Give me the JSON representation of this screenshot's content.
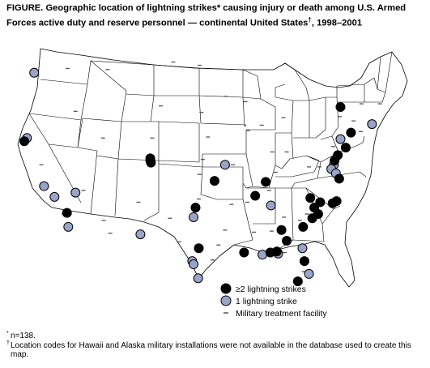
{
  "figure": {
    "title_line1": "FIGURE. Geographic location of lightning strikes* causing injury or death among U.S. Armed",
    "title_line2": "Forces active duty and reserve personnel — continental United States",
    "title_dagger": "†",
    "title_tail": ", 1998–2001"
  },
  "legend": {
    "multi_label": "≥2 lightning strikes",
    "single_label": "1 lightning strike",
    "facility_label": "Military treatment facility"
  },
  "footnotes": {
    "n_mark": "*",
    "n_text": "n=138.",
    "dagger_mark": "†",
    "dagger_text": "Location codes for Hawaii and Alaska military installations were not available in the database used to create this map."
  },
  "colors": {
    "multi_strike": "#000000",
    "single_strike": "#9aa4c8",
    "marker_outline": "#000000",
    "facility_mark": "#555555",
    "state_border": "#000000"
  },
  "map_marks": {
    "multi_strike_sites": [
      {
        "lon": -124.0,
        "lat": 40.8
      },
      {
        "lon": -104.8,
        "lat": 39.2
      },
      {
        "lon": -104.7,
        "lat": 38.8
      },
      {
        "lon": -117.5,
        "lat": 34.1
      },
      {
        "lon": -95.0,
        "lat": 37.1
      },
      {
        "lon": -97.9,
        "lat": 34.6
      },
      {
        "lon": -97.4,
        "lat": 30.8
      },
      {
        "lon": -90.5,
        "lat": 30.4
      },
      {
        "lon": -87.2,
        "lat": 37.0
      },
      {
        "lon": -88.8,
        "lat": 35.7
      },
      {
        "lon": -86.5,
        "lat": 30.4
      },
      {
        "lon": -85.5,
        "lat": 30.5
      },
      {
        "lon": -84.0,
        "lat": 31.5
      },
      {
        "lon": -84.8,
        "lat": 32.5
      },
      {
        "lon": -81.5,
        "lat": 32.8
      },
      {
        "lon": -80.1,
        "lat": 33.6
      },
      {
        "lon": -79.2,
        "lat": 34.0
      },
      {
        "lon": -78.9,
        "lat": 35.1
      },
      {
        "lon": -77.0,
        "lat": 35.0
      },
      {
        "lon": -76.4,
        "lat": 35.2
      },
      {
        "lon": -80.4,
        "lat": 35.5
      },
      {
        "lon": -79.8,
        "lat": 34.6
      },
      {
        "lon": -76.0,
        "lat": 37.3
      },
      {
        "lon": -76.7,
        "lat": 39.0
      },
      {
        "lon": -76.2,
        "lat": 39.5
      },
      {
        "lon": -75.0,
        "lat": 40.2
      },
      {
        "lon": -74.2,
        "lat": 41.6
      },
      {
        "lon": -75.8,
        "lat": 44.0
      },
      {
        "lon": -81.3,
        "lat": 29.6
      },
      {
        "lon": -82.3,
        "lat": 27.7
      }
    ],
    "single_strike_sites": [
      {
        "lon": -122.5,
        "lat": 47.2
      },
      {
        "lon": -123.6,
        "lat": 41.1
      },
      {
        "lon": -121.0,
        "lat": 36.6
      },
      {
        "lon": -119.4,
        "lat": 35.6
      },
      {
        "lon": -117.3,
        "lat": 32.8
      },
      {
        "lon": -116.2,
        "lat": 36.0
      },
      {
        "lon": -104.8,
        "lat": 39.0
      },
      {
        "lon": -106.3,
        "lat": 32.1
      },
      {
        "lon": -98.2,
        "lat": 33.7
      },
      {
        "lon": -98.4,
        "lat": 29.6
      },
      {
        "lon": -98.2,
        "lat": 29.3
      },
      {
        "lon": -97.5,
        "lat": 28.0
      },
      {
        "lon": -93.4,
        "lat": 38.6
      },
      {
        "lon": -86.4,
        "lat": 34.8
      },
      {
        "lon": -87.7,
        "lat": 30.2
      },
      {
        "lon": -85.3,
        "lat": 30.3
      },
      {
        "lon": -81.6,
        "lat": 30.8
      },
      {
        "lon": -80.6,
        "lat": 28.4
      },
      {
        "lon": -76.8,
        "lat": 38.6
      },
      {
        "lon": -77.2,
        "lat": 38.2
      },
      {
        "lon": -75.8,
        "lat": 41.0
      },
      {
        "lon": -71.0,
        "lat": 42.4
      },
      {
        "lon": -76.5,
        "lat": 37.8
      }
    ],
    "facility_sites": [
      {
        "lon": -122.4,
        "lat": 47.6
      },
      {
        "lon": -117.4,
        "lat": 47.6
      },
      {
        "lon": -116.2,
        "lat": 43.6
      },
      {
        "lon": -121.4,
        "lat": 38.6
      },
      {
        "lon": -118.0,
        "lat": 34.0
      },
      {
        "lon": -115.0,
        "lat": 36.2
      },
      {
        "lon": -112.0,
        "lat": 41.1
      },
      {
        "lon": -111.9,
        "lat": 33.4
      },
      {
        "lon": -110.9,
        "lat": 32.2
      },
      {
        "lon": -106.6,
        "lat": 35.1
      },
      {
        "lon": -106.4,
        "lat": 31.8
      },
      {
        "lon": -104.5,
        "lat": 41.1
      },
      {
        "lon": -111.3,
        "lat": 47.5
      },
      {
        "lon": -101.3,
        "lat": 48.2
      },
      {
        "lon": -97.3,
        "lat": 47.9
      },
      {
        "lon": -103.2,
        "lat": 44.1
      },
      {
        "lon": -97.0,
        "lat": 43.5
      },
      {
        "lon": -96.0,
        "lat": 41.2
      },
      {
        "lon": -96.8,
        "lat": 39.1
      },
      {
        "lon": -97.3,
        "lat": 37.7
      },
      {
        "lon": -97.4,
        "lat": 35.4
      },
      {
        "lon": -101.8,
        "lat": 33.6
      },
      {
        "lon": -100.4,
        "lat": 31.4
      },
      {
        "lon": -97.7,
        "lat": 31.1
      },
      {
        "lon": -95.3,
        "lat": 29.7
      },
      {
        "lon": -94.4,
        "lat": 31.1
      },
      {
        "lon": -92.4,
        "lat": 34.9
      },
      {
        "lon": -93.4,
        "lat": 32.5
      },
      {
        "lon": -92.2,
        "lat": 38.6
      },
      {
        "lon": -93.3,
        "lat": 45.0
      },
      {
        "lon": -90.3,
        "lat": 44.5
      },
      {
        "lon": -89.9,
        "lat": 41.8
      },
      {
        "lon": -87.8,
        "lat": 42.3
      },
      {
        "lon": -86.2,
        "lat": 39.8
      },
      {
        "lon": -84.0,
        "lat": 39.8
      },
      {
        "lon": -84.5,
        "lat": 43.0
      },
      {
        "lon": -85.7,
        "lat": 37.9
      },
      {
        "lon": -86.7,
        "lat": 36.2
      },
      {
        "lon": -90.0,
        "lat": 35.1
      },
      {
        "lon": -89.0,
        "lat": 32.3
      },
      {
        "lon": -86.3,
        "lat": 32.4
      },
      {
        "lon": -84.4,
        "lat": 33.7
      },
      {
        "lon": -82.0,
        "lat": 33.4
      },
      {
        "lon": -80.9,
        "lat": 34.0
      },
      {
        "lon": -81.4,
        "lat": 28.6
      },
      {
        "lon": -82.6,
        "lat": 28.0
      },
      {
        "lon": -84.3,
        "lat": 30.4
      },
      {
        "lon": -77.6,
        "lat": 38.4
      },
      {
        "lon": -79.0,
        "lat": 38.4
      },
      {
        "lon": -80.6,
        "lat": 38.4
      },
      {
        "lon": -76.9,
        "lat": 40.3
      },
      {
        "lon": -73.8,
        "lat": 42.7
      },
      {
        "lon": -75.9,
        "lat": 43.1
      },
      {
        "lon": -72.6,
        "lat": 44.3
      },
      {
        "lon": -69.8,
        "lat": 44.3
      },
      {
        "lon": -72.7,
        "lat": 41.7
      },
      {
        "lon": -88.8,
        "lat": 35.8
      }
    ]
  }
}
